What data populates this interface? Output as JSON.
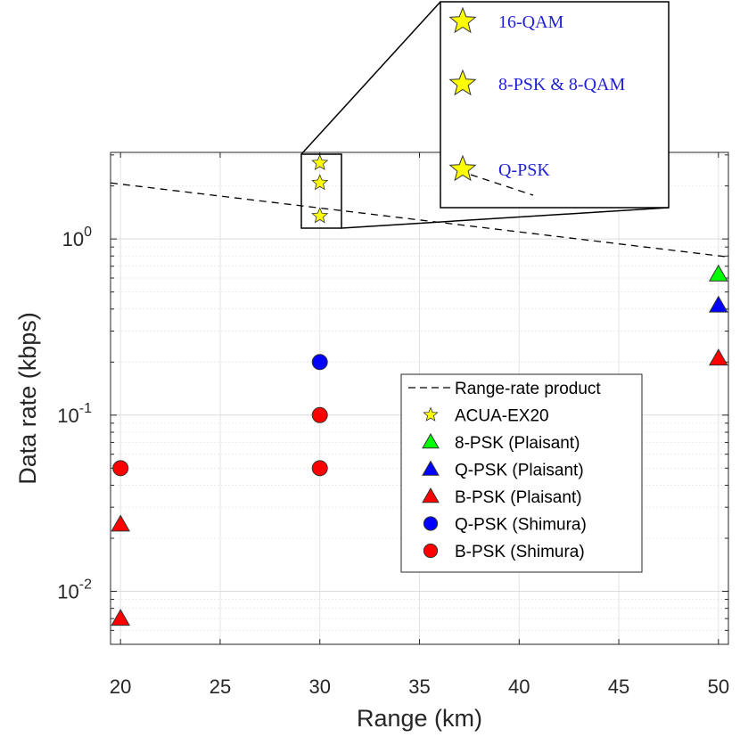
{
  "chart_data": {
    "type": "scatter",
    "xlabel": "Range (km)",
    "ylabel": "Data rate (kbps)",
    "xlim": [
      19.5,
      50.5
    ],
    "ylim": [
      0.005,
      3.1
    ],
    "yscale": "log",
    "xticks": [
      20,
      25,
      30,
      35,
      40,
      45,
      50
    ],
    "xtick_labels": [
      "20",
      "25",
      "30",
      "35",
      "40",
      "45",
      "50"
    ],
    "ytick_labels": [
      {
        "base": "10",
        "exp": "0",
        "value": 1
      },
      {
        "base": "10",
        "exp": "-1",
        "value": 0.1
      },
      {
        "base": "10",
        "exp": "-2",
        "value": 0.01
      }
    ],
    "grid": true,
    "legend_position": "lower-right",
    "series": [
      {
        "name": "Range-rate product",
        "kind": "dashed-line",
        "color": "#000000",
        "points": [
          {
            "x": 19.5,
            "y": 2.08
          },
          {
            "x": 50.5,
            "y": 0.79
          }
        ]
      },
      {
        "name": "ACUA-EX20",
        "marker": "star",
        "color": "#ffff00",
        "points": [
          {
            "x": 30,
            "y": 2.7
          },
          {
            "x": 30,
            "y": 2.08
          },
          {
            "x": 30,
            "y": 1.35
          }
        ]
      },
      {
        "name": "8-PSK (Plaisant)",
        "marker": "triangle",
        "color": "#00ff00",
        "points": [
          {
            "x": 50,
            "y": 0.63
          }
        ]
      },
      {
        "name": "Q-PSK (Plaisant)",
        "marker": "triangle",
        "color": "#0000ff",
        "points": [
          {
            "x": 50,
            "y": 0.42
          }
        ]
      },
      {
        "name": "B-PSK (Plaisant)",
        "marker": "triangle",
        "color": "#ff0000",
        "points": [
          {
            "x": 50,
            "y": 0.21
          },
          {
            "x": 20,
            "y": 0.024
          },
          {
            "x": 20,
            "y": 0.007
          }
        ]
      },
      {
        "name": "Q-PSK (Shimura)",
        "marker": "circle",
        "color": "#0000ff",
        "points": [
          {
            "x": 30,
            "y": 0.2
          }
        ]
      },
      {
        "name": "B-PSK (Shimura)",
        "marker": "circle",
        "color": "#ff0000",
        "points": [
          {
            "x": 30,
            "y": 0.1
          },
          {
            "x": 30,
            "y": 0.05
          },
          {
            "x": 20,
            "y": 0.05
          }
        ]
      }
    ],
    "inset": {
      "labels": [
        "16-QAM",
        "8-PSK & 8-QAM",
        "Q-PSK"
      ]
    }
  }
}
